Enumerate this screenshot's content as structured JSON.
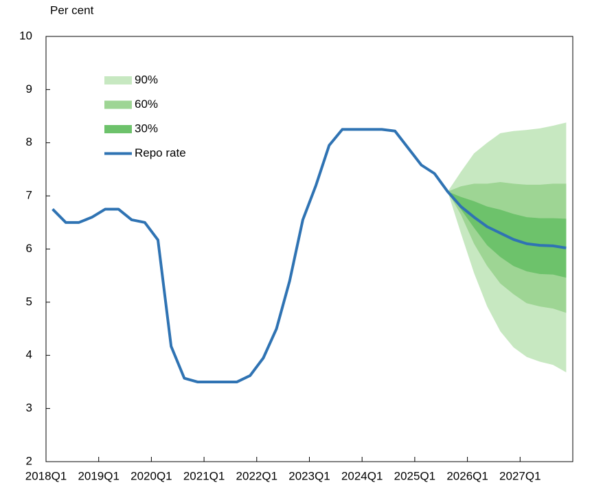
{
  "chart_data": {
    "type": "fan",
    "y_label": "Per cent",
    "categories": [
      "2018Q1",
      null,
      null,
      null,
      "2019Q1",
      null,
      null,
      null,
      "2020Q1",
      null,
      null,
      null,
      "2021Q1",
      null,
      null,
      null,
      "2022Q1",
      null,
      null,
      null,
      "2023Q1",
      null,
      null,
      null,
      "2024Q1",
      null,
      null,
      null,
      "2025Q1",
      null,
      null,
      null,
      "2026Q1",
      null,
      null,
      null,
      "2027Q1",
      null,
      null,
      null
    ],
    "ylim": [
      2,
      10
    ],
    "yticks": [
      2,
      3,
      4,
      5,
      6,
      7,
      8,
      9,
      10
    ],
    "grid": false,
    "legend": "upper left",
    "bands": [
      {
        "name": "90%",
        "color": "#c7e8c1",
        "lower": [
          null,
          null,
          null,
          null,
          null,
          null,
          null,
          null,
          null,
          null,
          null,
          null,
          null,
          null,
          null,
          null,
          null,
          null,
          null,
          null,
          null,
          null,
          null,
          null,
          null,
          null,
          null,
          null,
          null,
          null,
          7.08,
          6.3,
          5.55,
          4.92,
          4.45,
          4.15,
          3.97,
          3.88,
          3.82,
          3.68
        ],
        "upper": [
          null,
          null,
          null,
          null,
          null,
          null,
          null,
          null,
          null,
          null,
          null,
          null,
          null,
          null,
          null,
          null,
          null,
          null,
          null,
          null,
          null,
          null,
          null,
          null,
          null,
          null,
          null,
          null,
          null,
          null,
          7.08,
          7.45,
          7.8,
          8.0,
          8.18,
          8.22,
          8.24,
          8.27,
          8.32,
          8.38
        ]
      },
      {
        "name": "60%",
        "color": "#9ed594",
        "lower": [
          null,
          null,
          null,
          null,
          null,
          null,
          null,
          null,
          null,
          null,
          null,
          null,
          null,
          null,
          null,
          null,
          null,
          null,
          null,
          null,
          null,
          null,
          null,
          null,
          null,
          null,
          null,
          null,
          null,
          null,
          7.08,
          6.65,
          6.1,
          5.68,
          5.35,
          5.15,
          4.98,
          4.92,
          4.88,
          4.8
        ],
        "upper": [
          null,
          null,
          null,
          null,
          null,
          null,
          null,
          null,
          null,
          null,
          null,
          null,
          null,
          null,
          null,
          null,
          null,
          null,
          null,
          null,
          null,
          null,
          null,
          null,
          null,
          null,
          null,
          null,
          null,
          null,
          7.08,
          7.18,
          7.23,
          7.23,
          7.26,
          7.23,
          7.21,
          7.21,
          7.23,
          7.23
        ]
      },
      {
        "name": "30%",
        "color": "#6dc26b",
        "lower": [
          null,
          null,
          null,
          null,
          null,
          null,
          null,
          null,
          null,
          null,
          null,
          null,
          null,
          null,
          null,
          null,
          null,
          null,
          null,
          null,
          null,
          null,
          null,
          null,
          null,
          null,
          null,
          null,
          null,
          null,
          7.08,
          6.75,
          6.4,
          6.07,
          5.85,
          5.68,
          5.58,
          5.53,
          5.52,
          5.46
        ],
        "upper": [
          null,
          null,
          null,
          null,
          null,
          null,
          null,
          null,
          null,
          null,
          null,
          null,
          null,
          null,
          null,
          null,
          null,
          null,
          null,
          null,
          null,
          null,
          null,
          null,
          null,
          null,
          null,
          null,
          null,
          null,
          7.08,
          6.98,
          6.9,
          6.8,
          6.74,
          6.66,
          6.6,
          6.58,
          6.58,
          6.57
        ]
      }
    ],
    "series": [
      {
        "name": "Repo rate",
        "color": "#2f73b3",
        "values": [
          6.75,
          6.5,
          6.5,
          6.6,
          6.75,
          6.75,
          6.55,
          6.5,
          6.17,
          4.17,
          3.57,
          3.5,
          3.5,
          3.5,
          3.5,
          3.62,
          3.95,
          4.5,
          5.4,
          6.55,
          7.2,
          7.95,
          8.25,
          8.25,
          8.25,
          8.25,
          8.22,
          7.9,
          7.58,
          7.42,
          7.08,
          6.8,
          6.6,
          6.42,
          6.3,
          6.18,
          6.1,
          6.07,
          6.06,
          6.02
        ]
      }
    ]
  }
}
